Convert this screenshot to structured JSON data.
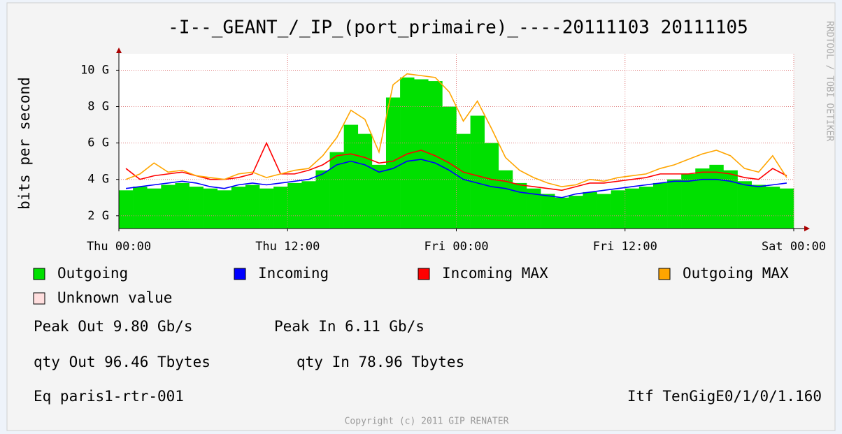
{
  "chart_data": {
    "type": "area",
    "title": "-I--_GEANT_/_IP_(port_primaire)_----20111103 20111105",
    "y_label": "bits per second",
    "side_label": "RRDTOOL / TOBI OETIKER",
    "x": [
      0.5,
      1.5,
      2.5,
      3.5,
      4.5,
      5.5,
      6.5,
      7.5,
      8.5,
      9.5,
      10.5,
      11.5,
      12.5,
      13.5,
      14.5,
      15.5,
      16.5,
      17.5,
      18.5,
      19.5,
      20.5,
      21.5,
      22.5,
      23.5,
      24.5,
      25.5,
      26.5,
      27.5,
      28.5,
      29.5,
      30.5,
      31.5,
      32.5,
      33.5,
      34.5,
      35.5,
      36.5,
      37.5,
      38.5,
      39.5,
      40.5,
      41.5,
      42.5,
      43.5,
      44.5,
      45.5,
      46.5,
      47.5
    ],
    "xlim": [
      0,
      48
    ],
    "xticks": [
      {
        "value": 0,
        "label": "Thu 00:00"
      },
      {
        "value": 12,
        "label": "Thu 12:00"
      },
      {
        "value": 24,
        "label": "Fri 00:00"
      },
      {
        "value": 36,
        "label": "Fri 12:00"
      },
      {
        "value": 48,
        "label": "Sat 00:00"
      }
    ],
    "ylim": [
      1.3,
      10.9
    ],
    "yticks": [
      {
        "value": 2,
        "label": "2 G"
      },
      {
        "value": 4,
        "label": "4 G"
      },
      {
        "value": 6,
        "label": "6 G"
      },
      {
        "value": 8,
        "label": "8 G"
      },
      {
        "value": 10,
        "label": "10 G"
      }
    ],
    "grid": true,
    "series": [
      {
        "name": "Outgoing",
        "color": "#00e000",
        "style": "area",
        "values": [
          3.4,
          3.6,
          3.5,
          3.7,
          3.8,
          3.6,
          3.5,
          3.4,
          3.6,
          3.7,
          3.5,
          3.6,
          3.8,
          3.9,
          4.5,
          5.5,
          7.0,
          6.5,
          4.8,
          8.5,
          9.6,
          9.5,
          9.4,
          8.0,
          6.5,
          7.5,
          6.0,
          4.5,
          3.8,
          3.5,
          3.2,
          3.0,
          3.1,
          3.3,
          3.2,
          3.4,
          3.5,
          3.6,
          3.8,
          4.0,
          4.3,
          4.6,
          4.8,
          4.5,
          3.9,
          3.7,
          3.6,
          3.5
        ]
      },
      {
        "name": "Incoming",
        "color": "#0000ff",
        "style": "line",
        "values": [
          3.5,
          3.6,
          3.7,
          3.8,
          3.9,
          3.8,
          3.6,
          3.5,
          3.7,
          3.8,
          3.7,
          3.8,
          3.9,
          4.0,
          4.3,
          4.8,
          5.0,
          4.8,
          4.4,
          4.6,
          5.0,
          5.1,
          4.9,
          4.5,
          4.0,
          3.8,
          3.6,
          3.5,
          3.3,
          3.2,
          3.1,
          3.0,
          3.2,
          3.3,
          3.4,
          3.5,
          3.6,
          3.7,
          3.8,
          3.9,
          3.9,
          4.0,
          4.0,
          3.9,
          3.7,
          3.6,
          3.7,
          3.8
        ]
      },
      {
        "name": "Incoming MAX",
        "color": "#ff0000",
        "style": "line",
        "values": [
          4.6,
          4.0,
          4.2,
          4.3,
          4.4,
          4.2,
          4.0,
          4.0,
          4.1,
          4.3,
          6.0,
          4.3,
          4.3,
          4.5,
          4.8,
          5.3,
          5.4,
          5.2,
          4.9,
          5.0,
          5.4,
          5.6,
          5.3,
          4.9,
          4.4,
          4.2,
          4.0,
          3.9,
          3.7,
          3.6,
          3.5,
          3.4,
          3.6,
          3.8,
          3.8,
          3.9,
          4.0,
          4.1,
          4.3,
          4.3,
          4.3,
          4.4,
          4.4,
          4.3,
          4.1,
          4.0,
          4.6,
          4.2
        ]
      },
      {
        "name": "Outgoing MAX",
        "color": "#ffa500",
        "style": "line",
        "values": [
          4.0,
          4.3,
          4.9,
          4.4,
          4.5,
          4.2,
          4.1,
          4.0,
          4.3,
          4.4,
          4.1,
          4.3,
          4.5,
          4.6,
          5.3,
          6.3,
          7.8,
          7.3,
          5.5,
          9.2,
          9.8,
          9.7,
          9.6,
          8.8,
          7.2,
          8.3,
          6.8,
          5.2,
          4.5,
          4.1,
          3.8,
          3.6,
          3.7,
          4.0,
          3.9,
          4.1,
          4.2,
          4.3,
          4.6,
          4.8,
          5.1,
          5.4,
          5.6,
          5.3,
          4.6,
          4.4,
          5.3,
          4.1
        ]
      }
    ],
    "unknown": {
      "name": "Unknown value",
      "color": "#ffdede"
    },
    "stats": [
      "Peak Out 9.80 Gb/s",
      "Peak In 6.11 Gb/s",
      "qty Out 96.46 Tbytes",
      "qty In 78.96 Tbytes",
      "Eq paris1-rtr-001",
      "Itf TenGigE0/1/0/1.160"
    ],
    "copyright": "Copyright (c) 2011 GIP RENATER"
  }
}
